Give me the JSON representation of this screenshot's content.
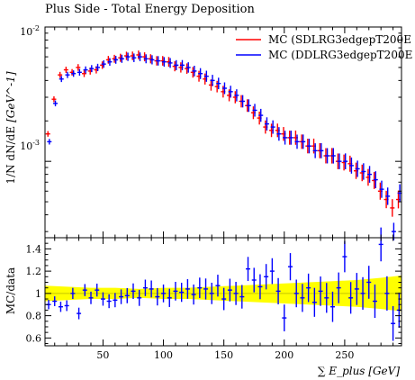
{
  "title": "Plus Side - Total Energy Deposition",
  "chart_data": [
    {
      "type": "scatter",
      "panel": "main",
      "title": "Plus Side - Total Energy Deposition",
      "xlabel": "∑ E_plus [GeV]",
      "ylabel": "1/N dN/dE [GeV^-1]",
      "ylabel_main": "1/N dN/dE",
      "ylabel_unit": "[GeV^-1]",
      "yscale": "log",
      "xlim": [
        2,
        297
      ],
      "ylim": [
        0.00027,
        0.01
      ],
      "xticks": [
        50,
        100,
        150,
        200,
        250
      ],
      "yticks": [
        {
          "value": 0.001,
          "base": "10",
          "exp": "-3"
        },
        {
          "value": 0.01,
          "base": "10",
          "exp": "-2"
        }
      ],
      "legend_placement": "top-right",
      "series": [
        {
          "name": "MC (SDLRG3edgepT200E",
          "color": "#ff0000",
          "x": [
            5,
            10,
            15,
            20,
            25,
            30,
            35,
            40,
            45,
            50,
            55,
            60,
            65,
            70,
            75,
            80,
            85,
            90,
            95,
            100,
            105,
            110,
            115,
            120,
            125,
            130,
            135,
            140,
            145,
            150,
            155,
            160,
            165,
            170,
            175,
            180,
            185,
            190,
            195,
            200,
            205,
            210,
            215,
            220,
            225,
            230,
            235,
            240,
            245,
            250,
            255,
            260,
            265,
            270,
            275,
            280,
            285,
            290,
            295
          ],
          "y": [
            0.0016,
            0.0029,
            0.0044,
            0.0048,
            0.0046,
            0.005,
            0.0045,
            0.0047,
            0.0048,
            0.0052,
            0.0057,
            0.0058,
            0.0059,
            0.0061,
            0.0061,
            0.0062,
            0.006,
            0.0058,
            0.0056,
            0.0056,
            0.0055,
            0.0051,
            0.005,
            0.0049,
            0.0046,
            0.0043,
            0.0041,
            0.0037,
            0.0036,
            0.0033,
            0.0031,
            0.003,
            0.0028,
            0.0026,
            0.0023,
            0.0021,
            0.0018,
            0.0017,
            0.0017,
            0.0016,
            0.0015,
            0.0015,
            0.0014,
            0.0013,
            0.0013,
            0.0012,
            0.0011,
            0.0011,
            0.001,
            0.00098,
            0.00096,
            0.00085,
            0.00082,
            0.00076,
            0.00072,
            0.0006,
            0.00052,
            0.00045,
            0.00052
          ]
        },
        {
          "name": "MC (DDLRG3edgepT200E",
          "color": "#0000ff",
          "x": [
            5,
            10,
            15,
            20,
            25,
            30,
            35,
            40,
            45,
            50,
            55,
            60,
            65,
            70,
            75,
            80,
            85,
            90,
            95,
            100,
            105,
            110,
            115,
            120,
            125,
            130,
            135,
            140,
            145,
            150,
            155,
            160,
            165,
            170,
            175,
            180,
            185,
            190,
            195,
            200,
            205,
            210,
            215,
            220,
            225,
            230,
            235,
            240,
            245,
            250,
            255,
            260,
            265,
            270,
            275,
            280,
            285,
            290,
            295
          ],
          "y": [
            0.0014,
            0.0027,
            0.0041,
            0.0044,
            0.0045,
            0.0046,
            0.0048,
            0.0049,
            0.005,
            0.0053,
            0.0055,
            0.0057,
            0.0058,
            0.006,
            0.0059,
            0.006,
            0.0058,
            0.0057,
            0.0056,
            0.0055,
            0.0054,
            0.0052,
            0.0052,
            0.005,
            0.0047,
            0.0045,
            0.0043,
            0.004,
            0.0038,
            0.0035,
            0.0033,
            0.0031,
            0.0028,
            0.0026,
            0.0024,
            0.0022,
            0.0019,
            0.0018,
            0.0016,
            0.0015,
            0.0015,
            0.0014,
            0.0014,
            0.0013,
            0.0012,
            0.0012,
            0.0011,
            0.0011,
            0.001,
            0.001,
            0.00093,
            0.00088,
            0.00084,
            0.0008,
            0.00073,
            0.00062,
            0.00055,
            0.0003,
            0.00058
          ]
        }
      ]
    },
    {
      "type": "scatter",
      "panel": "ratio",
      "xlabel": "∑ E_plus [GeV]",
      "ylabel": "MC/data",
      "xlim": [
        2,
        297
      ],
      "ylim": [
        0.53,
        1.5
      ],
      "xticks": [
        50,
        100,
        150,
        200,
        250
      ],
      "yticks": [
        0.6,
        0.8,
        1,
        1.2,
        1.4
      ],
      "band": {
        "color": "#ffff00",
        "x": [
          2,
          20,
          40,
          60,
          80,
          100,
          120,
          140,
          160,
          180,
          200,
          220,
          240,
          260,
          280,
          297
        ],
        "lower": [
          0.93,
          0.94,
          0.95,
          0.95,
          0.96,
          0.95,
          0.95,
          0.94,
          0.93,
          0.92,
          0.91,
          0.9,
          0.89,
          0.88,
          0.86,
          0.84
        ],
        "upper": [
          1.07,
          1.06,
          1.05,
          1.05,
          1.04,
          1.05,
          1.05,
          1.06,
          1.07,
          1.08,
          1.09,
          1.1,
          1.11,
          1.12,
          1.14,
          1.16
        ]
      },
      "series": [
        {
          "name": "MC (DDLRG3edgepT200E",
          "color": "#0000ff",
          "x": [
            5,
            10,
            15,
            20,
            25,
            30,
            35,
            40,
            45,
            50,
            55,
            60,
            65,
            70,
            75,
            80,
            85,
            90,
            95,
            100,
            105,
            110,
            115,
            120,
            125,
            130,
            135,
            140,
            145,
            150,
            155,
            160,
            165,
            170,
            175,
            180,
            185,
            190,
            195,
            200,
            205,
            210,
            215,
            220,
            225,
            230,
            235,
            240,
            245,
            250,
            255,
            260,
            265,
            270,
            275,
            280,
            285,
            290,
            295
          ],
          "y": [
            0.9,
            0.93,
            0.88,
            0.89,
            1.0,
            0.82,
            1.03,
            0.96,
            1.03,
            0.95,
            0.93,
            0.94,
            0.97,
            0.98,
            1.02,
            0.96,
            1.05,
            1.04,
            0.97,
            1.0,
            0.96,
            1.02,
            1.01,
            1.04,
            0.99,
            1.05,
            1.04,
            1.0,
            1.07,
            0.95,
            1.03,
            1.0,
            0.97,
            1.22,
            1.12,
            1.06,
            1.15,
            1.2,
            1.02,
            0.78,
            1.24,
            1.0,
            0.96,
            1.05,
            0.92,
            1.02,
            0.96,
            0.88,
            1.05,
            1.33,
            0.96,
            1.04,
            1.0,
            1.1,
            0.93,
            1.44,
            1.0,
            0.73,
            0.85
          ]
        }
      ]
    }
  ]
}
